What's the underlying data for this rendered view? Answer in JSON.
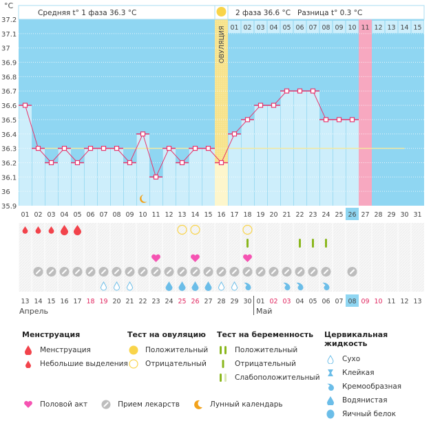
{
  "header": {
    "unit_label": "°C",
    "phase1_label": "Средняя t° 1 фаза",
    "phase1_value": "36.3 °C",
    "phase2_label": "2 фаза",
    "phase2_value": "36.6 °C",
    "diff_label": "Разница t°",
    "diff_value": "0.3 °C",
    "ovulation_label": "ОВУЛЯЦИЯ"
  },
  "chart_data": {
    "type": "line",
    "title": "",
    "xlabel": "",
    "ylabel": "°C",
    "ylim": [
      35.9,
      37.2
    ],
    "yticks": [
      "35.9",
      "36",
      "36.1",
      "36.2",
      "36.3",
      "36.4",
      "36.5",
      "36.6",
      "36.7",
      "36.8",
      "36.9",
      "37",
      "37.1",
      "37.2"
    ],
    "x": [
      "01",
      "02",
      "03",
      "04",
      "05",
      "06",
      "07",
      "08",
      "09",
      "10",
      "11",
      "12",
      "13",
      "14",
      "15",
      "16",
      "17",
      "18",
      "19",
      "20",
      "21",
      "22",
      "23",
      "24",
      "25",
      "26",
      "27",
      "28",
      "29",
      "30",
      "31"
    ],
    "series": [
      {
        "name": "Базальная температура",
        "values": [
          36.6,
          36.3,
          36.2,
          36.3,
          36.2,
          36.3,
          36.3,
          36.3,
          36.2,
          36.4,
          36.1,
          36.3,
          36.2,
          36.3,
          36.3,
          36.2,
          36.4,
          36.5,
          36.6,
          36.6,
          36.7,
          36.7,
          36.7,
          36.5,
          36.5,
          36.5,
          null,
          null,
          null,
          null,
          null
        ]
      }
    ],
    "coverline": 36.3,
    "coverline_until_day": 30,
    "ovulation_day": 16,
    "current_day": 26,
    "next_period_day": 27,
    "top_days": [
      "01",
      "02",
      "03",
      "04",
      "05",
      "06",
      "07",
      "08",
      "09",
      "10",
      "11",
      "12",
      "13",
      "14",
      "15"
    ],
    "top_days_start_col": 17,
    "top_highlight_day": "11",
    "moon_day": 10,
    "grid": true
  },
  "calendar": {
    "dates": [
      "13",
      "14",
      "15",
      "16",
      "17",
      "18",
      "19",
      "20",
      "21",
      "22",
      "23",
      "24",
      "25",
      "26",
      "27",
      "28",
      "29",
      "30",
      "01",
      "02",
      "03",
      "04",
      "05",
      "06",
      "07",
      "08",
      "09",
      "10",
      "11",
      "12",
      "13"
    ],
    "weekend_cols": [
      6,
      7,
      13,
      14,
      20,
      21,
      27,
      28
    ],
    "today_col": 26,
    "months": [
      {
        "label": "Апрель",
        "col": 1
      },
      {
        "label": "Май",
        "col": 19
      }
    ],
    "rows": {
      "menstruation": {
        "1": "small",
        "2": "small",
        "3": "small",
        "4": "big",
        "5": "big"
      },
      "ovulation_test": {
        "13": "negative",
        "14": "negative",
        "18": "negative"
      },
      "pregnancy_test": {
        "18": "negative",
        "22": "negative",
        "23": "negative",
        "24": "negative"
      },
      "intercourse": [
        11,
        14,
        18
      ],
      "medication": [
        2,
        3,
        4,
        5,
        6,
        7,
        8,
        9,
        10,
        11,
        12,
        13,
        14,
        15,
        16,
        17,
        18,
        19,
        20,
        21,
        22,
        23,
        24,
        26
      ],
      "cervical": {
        "7": "dry",
        "8": "dry",
        "9": "dry",
        "12": "watery",
        "13": "watery",
        "14": "watery",
        "15": "watery",
        "16": "dry",
        "17": "dry",
        "18": "creamy",
        "21": "creamy",
        "22": "creamy",
        "24": "creamy"
      }
    }
  },
  "colors": {
    "sky": "#8fd6f2",
    "bar": "#cdeefb",
    "line": "#e8336b",
    "ovulation": "#f7e28a",
    "period": "#f7a8c0",
    "coverline": "#f3e9a0",
    "weekend": "#e0245e",
    "blood": "#f2434b",
    "heart": "#f553b2",
    "pill": "#bdbdbd",
    "egg": "#f9d44a",
    "preg": "#8ab71d",
    "fluid": "#6bbde8"
  },
  "legend": {
    "menstruation": {
      "title": "Менструация",
      "items": [
        "Менструация",
        "Небольшие выделения"
      ]
    },
    "ovulation_test": {
      "title": "Тест на овуляцию",
      "items": [
        "Положительный",
        "Отрицательный"
      ]
    },
    "pregnancy_test": {
      "title": "Тест на беременность",
      "items": [
        "Положительный",
        "Отрицательный",
        "Слабоположительный"
      ]
    },
    "cervical": {
      "title": "Цервикальная жидкость",
      "items": [
        "Сухо",
        "Клейкая",
        "Кремообразная",
        "Водянистая",
        "Яичный белок"
      ]
    },
    "other": {
      "items": [
        "Половой акт",
        "Прием лекарств",
        "Лунный календарь"
      ]
    }
  }
}
